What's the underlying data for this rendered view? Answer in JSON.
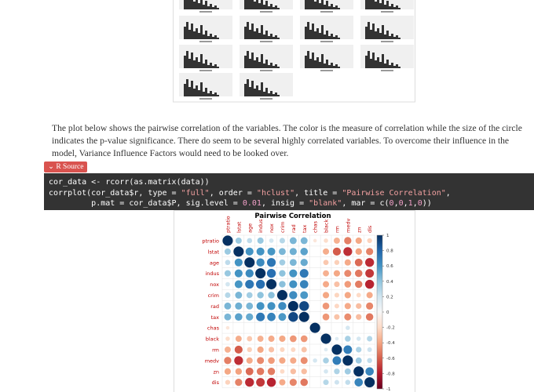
{
  "paragraph": "The plot below shows the pairwise correlation of the variables. The color is the measure of correlation while the size of the circle indicates the p-value significance. There do seem to be several highly correlated variables. To overcome their influence in the model, Variance Influence Factors would need to be looked over.",
  "button": "R Source",
  "code": [
    "cor_data <- rcorr(as.matrix(data))",
    "corrplot(cor_data$r, type = \"full\", order = \"hclust\", title = \"Pairwise Correlation\",",
    "         p.mat = cor_data$P, sig.level = 0.01, insig = \"blank\", mar = c(0,0,1,0))"
  ],
  "chart_data": {
    "type": "corrplot",
    "title": "Pairwise Correlation",
    "variables": [
      "ptratio",
      "lstat",
      "age",
      "indus",
      "nox",
      "crim",
      "rad",
      "tax",
      "chas",
      "black",
      "rm",
      "medv",
      "zn",
      "dis"
    ],
    "values": [
      [
        1,
        0.37,
        0.26,
        0.38,
        0.19,
        0.29,
        0.46,
        0.46,
        -0.12,
        -0.18,
        -0.36,
        -0.51,
        -0.39,
        -0.23
      ],
      [
        0.37,
        1,
        0.6,
        0.6,
        0.59,
        0.46,
        0.49,
        0.54,
        null,
        -0.37,
        -0.61,
        -0.74,
        -0.41,
        -0.5
      ],
      [
        0.26,
        0.6,
        1,
        0.64,
        0.73,
        0.35,
        0.46,
        0.51,
        null,
        -0.27,
        -0.24,
        -0.38,
        -0.57,
        -0.75
      ],
      [
        0.38,
        0.6,
        0.64,
        1,
        0.76,
        0.41,
        0.6,
        0.72,
        null,
        -0.36,
        -0.39,
        -0.48,
        -0.53,
        -0.71
      ],
      [
        0.19,
        0.59,
        0.73,
        0.76,
        1,
        0.42,
        0.61,
        0.67,
        null,
        -0.38,
        -0.3,
        -0.43,
        -0.52,
        -0.77
      ],
      [
        0.29,
        0.46,
        0.35,
        0.41,
        0.42,
        1,
        0.63,
        0.58,
        null,
        -0.39,
        -0.22,
        -0.39,
        -0.2,
        -0.38
      ],
      [
        0.46,
        0.49,
        0.46,
        0.6,
        0.61,
        0.63,
        1,
        0.91,
        null,
        -0.44,
        -0.21,
        -0.38,
        -0.31,
        -0.49
      ],
      [
        0.46,
        0.54,
        0.51,
        0.72,
        0.67,
        0.58,
        0.91,
        1,
        null,
        -0.44,
        -0.29,
        -0.47,
        -0.31,
        -0.53
      ],
      [
        -0.12,
        null,
        null,
        null,
        null,
        null,
        null,
        null,
        1,
        null,
        null,
        0.18,
        null,
        null
      ],
      [
        -0.18,
        -0.37,
        -0.27,
        -0.36,
        -0.38,
        -0.39,
        -0.44,
        -0.44,
        null,
        1,
        0.13,
        0.33,
        0.18,
        0.29
      ],
      [
        -0.36,
        -0.61,
        -0.24,
        -0.39,
        -0.3,
        -0.22,
        -0.21,
        -0.29,
        null,
        0.13,
        1,
        0.7,
        0.31,
        0.21
      ],
      [
        -0.51,
        -0.74,
        -0.38,
        -0.48,
        -0.43,
        -0.39,
        -0.38,
        -0.47,
        0.18,
        0.33,
        0.7,
        1,
        0.36,
        0.25
      ],
      [
        -0.39,
        -0.41,
        -0.57,
        -0.53,
        -0.52,
        -0.2,
        -0.31,
        -0.31,
        null,
        0.18,
        0.31,
        0.36,
        1,
        0.66
      ],
      [
        -0.23,
        -0.5,
        -0.75,
        -0.71,
        -0.77,
        -0.38,
        -0.49,
        -0.53,
        null,
        0.29,
        0.21,
        0.25,
        0.66,
        1
      ]
    ],
    "ylim": [
      -1,
      1
    ],
    "yticks": [
      1,
      0.8,
      0.6,
      0.4,
      0.2,
      0,
      -0.2,
      -0.4,
      -0.6,
      -0.8,
      -1
    ]
  }
}
